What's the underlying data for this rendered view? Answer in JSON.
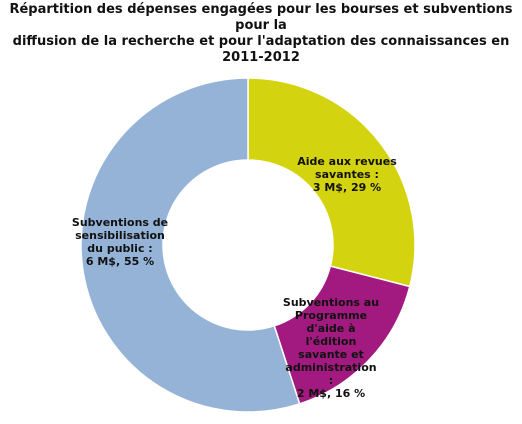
{
  "chart_data": {
    "type": "donut",
    "title": [
      "Répartition des dépenses engagées pour les bourses et subventions pour la",
      "diffusion de la recherche et pour l'adaptation des connaissances en",
      "2011-2012"
    ],
    "categories": [
      "Aide aux revues savantes :",
      "Subventions au Programme d'aide à l'édition savante et administration :",
      "Subventions de sensibilisation du public :"
    ],
    "values": [
      29,
      16,
      55
    ],
    "value_labels": [
      "3 M$, 29 %",
      "2 M$, 16 %",
      "6 M$, 55 %"
    ],
    "colors": [
      "#d4d30f",
      "#a21a80",
      "#94b3d7"
    ]
  }
}
